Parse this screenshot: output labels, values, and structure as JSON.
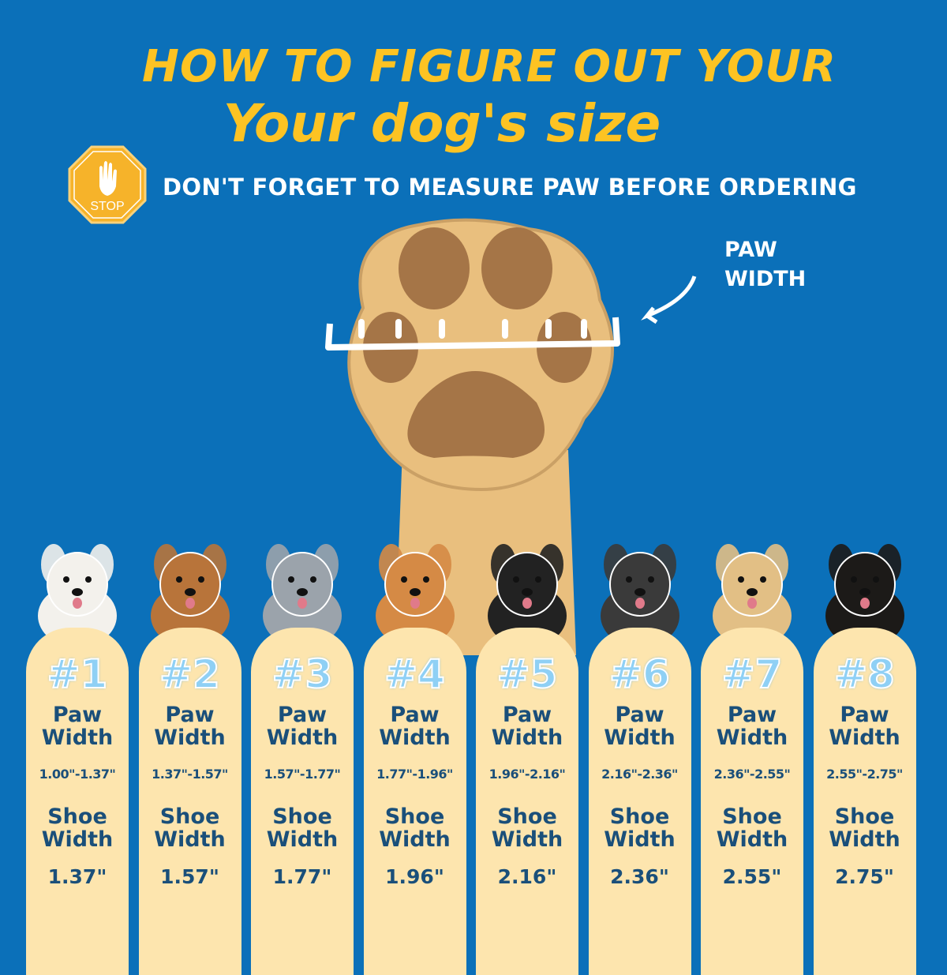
{
  "header": {
    "line1": "HOW TO FIGURE OUT YOUR",
    "line2": "Your dog's size"
  },
  "stop_sign": {
    "text": "STOP",
    "icon": "stop-hand-icon"
  },
  "reminder": "DON'T FORGET TO MEASURE PAW BEFORE ORDERING",
  "paw_width_label": {
    "line1": "PAW",
    "line2": "WIDTH"
  },
  "colors": {
    "background": "#0b70b9",
    "title": "#fdc323",
    "card": "#fde5ae",
    "card_text": "#1a4f7a",
    "number": "#8fd0f5"
  },
  "sizes": [
    {
      "number": "#1",
      "paw_label": [
        "Paw",
        "Width"
      ],
      "paw_range": "1.00\"-1.37\"",
      "shoe_label": [
        "Shoe",
        "Width"
      ],
      "shoe_width": "1.37\""
    },
    {
      "number": "#2",
      "paw_label": [
        "Paw",
        "Width"
      ],
      "paw_range": "1.37\"-1.57\"",
      "shoe_label": [
        "Shoe",
        "Width"
      ],
      "shoe_width": "1.57\""
    },
    {
      "number": "#3",
      "paw_label": [
        "Paw",
        "Width"
      ],
      "paw_range": "1.57\"-1.77\"",
      "shoe_label": [
        "Shoe",
        "Width"
      ],
      "shoe_width": "1.77\""
    },
    {
      "number": "#4",
      "paw_label": [
        "Paw",
        "Width"
      ],
      "paw_range": "1.77\"-1.96\"",
      "shoe_label": [
        "Shoe",
        "Width"
      ],
      "shoe_width": "1.96\""
    },
    {
      "number": "#5",
      "paw_label": [
        "Paw",
        "Width"
      ],
      "paw_range": "1.96\"-2.16\"",
      "shoe_label": [
        "Shoe",
        "Width"
      ],
      "shoe_width": "2.16\""
    },
    {
      "number": "#6",
      "paw_label": [
        "Paw",
        "Width"
      ],
      "paw_range": "2.16\"-2.36\"",
      "shoe_label": [
        "Shoe",
        "Width"
      ],
      "shoe_width": "2.36\""
    },
    {
      "number": "#7",
      "paw_label": [
        "Paw",
        "Width"
      ],
      "paw_range": "2.36\"-2.55\"",
      "shoe_label": [
        "Shoe",
        "Width"
      ],
      "shoe_width": "2.55\""
    },
    {
      "number": "#8",
      "paw_label": [
        "Paw",
        "Width"
      ],
      "paw_range": "2.55\"-2.75\"",
      "shoe_label": [
        "Shoe",
        "Width"
      ],
      "shoe_width": "2.75\""
    }
  ],
  "dogs": [
    {
      "icon": "maltese-dog-icon",
      "fur": "#f3f1ec"
    },
    {
      "icon": "yorkshire-terrier-icon",
      "fur": "#b8743a"
    },
    {
      "icon": "border-collie-merle-icon",
      "fur": "#9ba3ab"
    },
    {
      "icon": "shiba-inu-icon",
      "fur": "#d58a45"
    },
    {
      "icon": "border-collie-icon",
      "fur": "#222222"
    },
    {
      "icon": "husky-icon",
      "fur": "#3a3a3a"
    },
    {
      "icon": "golden-retriever-icon",
      "fur": "#e2bf85"
    },
    {
      "icon": "rottweiler-icon",
      "fur": "#1c1a18"
    }
  ]
}
